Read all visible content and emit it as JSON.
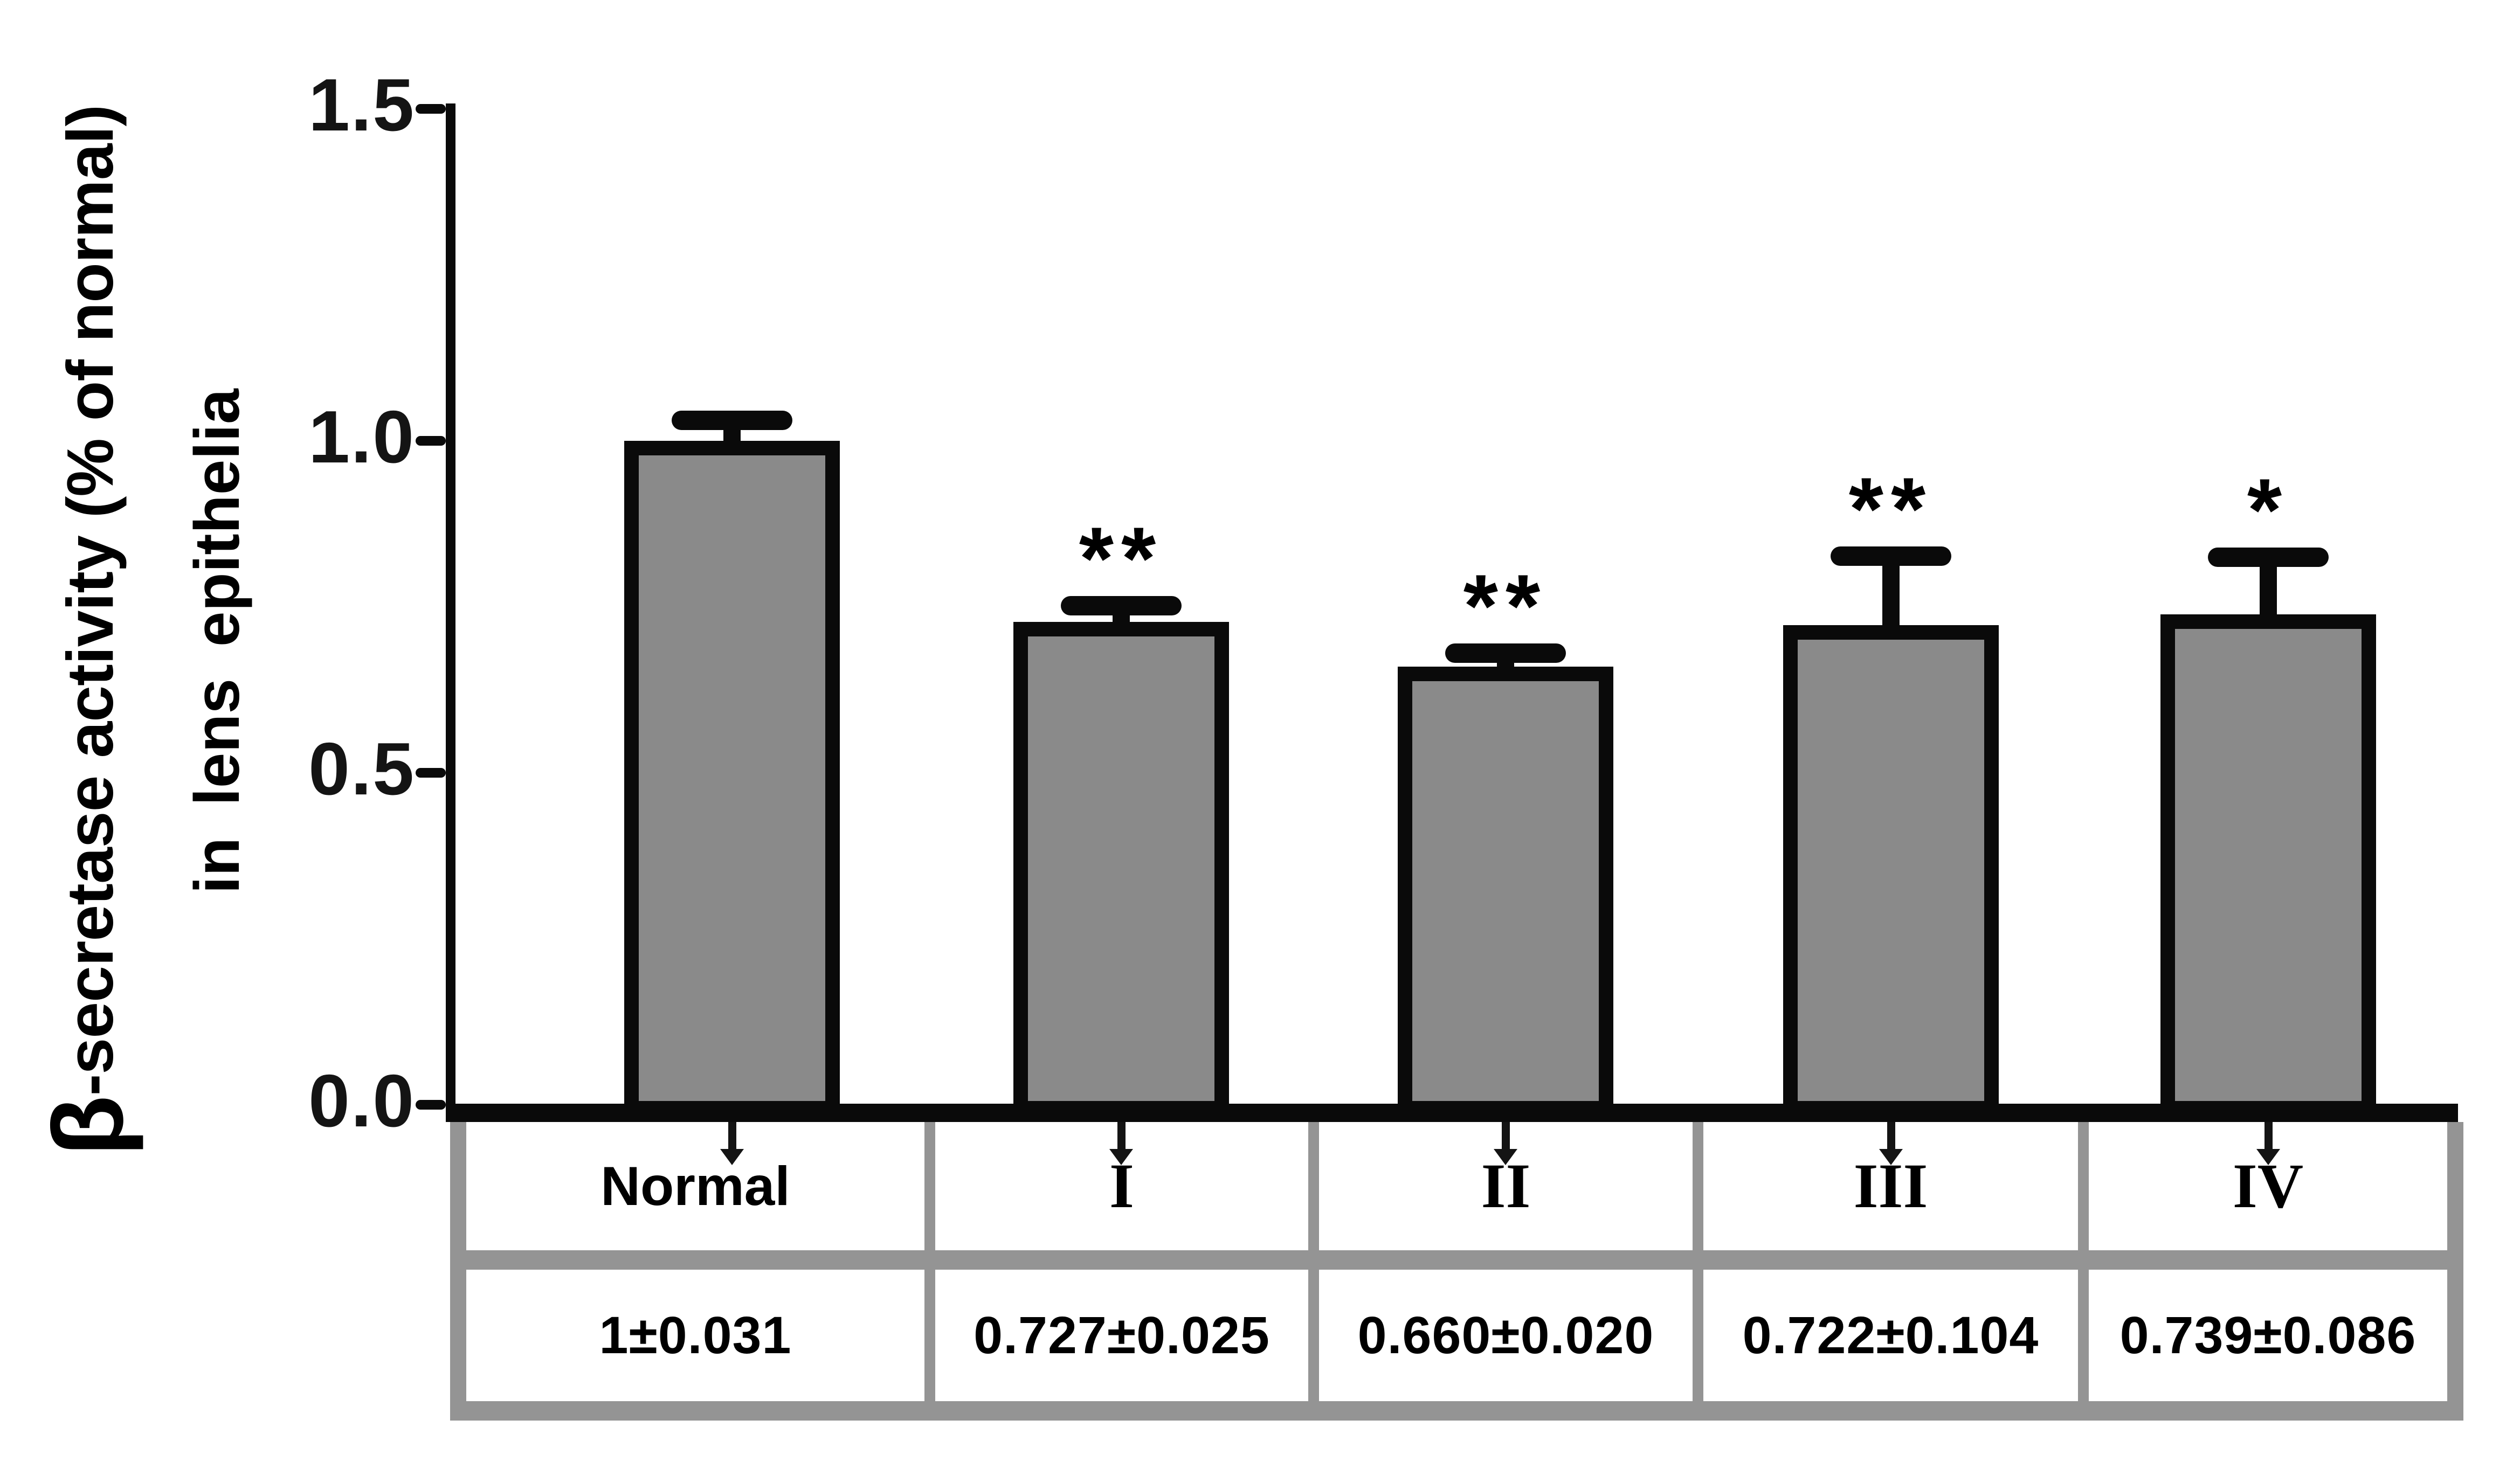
{
  "chart_data": {
    "type": "bar",
    "title": "",
    "ylabel_beta": "β",
    "ylabel_rest": "-secretase activity (% of normal)",
    "ylabel_line2": "in lens epithelia",
    "xlabel": "",
    "ylim": [
      0.0,
      1.5
    ],
    "yticks": [
      {
        "label": "1.5",
        "value": 1.5
      },
      {
        "label": "1.0",
        "value": 1.0
      },
      {
        "label": "0.5",
        "value": 0.5
      },
      {
        "label": "0.0",
        "value": 0.0
      }
    ],
    "grid": false,
    "legend": false,
    "categories": [
      "Normal",
      "I",
      "II",
      "III",
      "IV"
    ],
    "category_styles": [
      "sans",
      "serif",
      "serif",
      "serif",
      "serif"
    ],
    "values": [
      1.0,
      0.727,
      0.66,
      0.722,
      0.739
    ],
    "errors": [
      0.031,
      0.025,
      0.02,
      0.104,
      0.086
    ],
    "significance": [
      "",
      "**",
      "**",
      "**",
      "*"
    ],
    "value_labels": [
      "1±0.031",
      "0.727±0.025",
      "0.660±0.020",
      "0.722±0.104",
      "0.739±0.086"
    ],
    "colors": {
      "bar_fill": "#8a8a8a",
      "bar_border": "#0a0a0a",
      "axis": "#0a0a0a",
      "table_border": "#949494",
      "text": "#000000",
      "background": "#ffffff"
    }
  }
}
